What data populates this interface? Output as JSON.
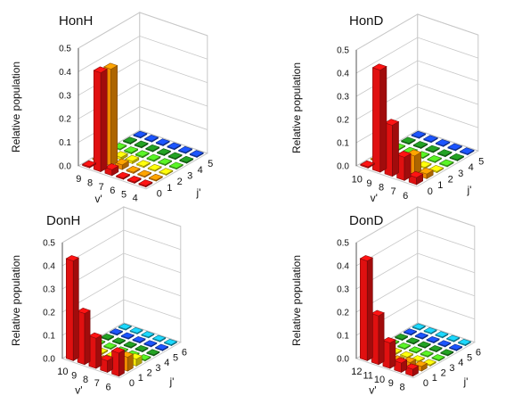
{
  "chart_data": [
    {
      "type": "bar",
      "title": "HonH",
      "ylabel": "Relative population",
      "ylim": [
        0,
        0.5
      ],
      "yticks": [
        "0.0",
        "0.1",
        "0.2",
        "0.3",
        "0.4",
        "0.5"
      ],
      "xlabel": "v'",
      "zlabel": "j'",
      "v_ticks": [
        "9",
        "8",
        "7",
        "6",
        "5",
        "4"
      ],
      "j_ticks": [
        "0",
        "1",
        "2",
        "3",
        "4",
        "5"
      ],
      "bars": [
        {
          "v": "9",
          "j": "0",
          "value": 0.005
        },
        {
          "v": "8",
          "j": "0",
          "value": 0.42
        },
        {
          "v": "7",
          "j": "0",
          "value": 0.025
        },
        {
          "v": "6",
          "j": "0",
          "value": 0.005
        },
        {
          "v": "5",
          "j": "0",
          "value": 0.005
        },
        {
          "v": "4",
          "j": "0",
          "value": 0.005
        },
        {
          "v": "9",
          "j": "1",
          "value": 0.004
        },
        {
          "v": "8",
          "j": "1",
          "value": 0.41
        },
        {
          "v": "7",
          "j": "1",
          "value": 0.02
        },
        {
          "v": "6",
          "j": "1",
          "value": 0.005
        },
        {
          "v": "5",
          "j": "1",
          "value": 0.004
        },
        {
          "v": "4",
          "j": "1",
          "value": 0.004
        },
        {
          "v": "9",
          "j": "2",
          "value": 0.004
        },
        {
          "v": "8",
          "j": "2",
          "value": 0.01
        },
        {
          "v": "7",
          "j": "2",
          "value": 0.01
        },
        {
          "v": "6",
          "j": "2",
          "value": 0.005
        },
        {
          "v": "5",
          "j": "2",
          "value": 0.004
        },
        {
          "v": "4",
          "j": "2",
          "value": 0.004
        },
        {
          "v": "9",
          "j": "3",
          "value": 0.004
        },
        {
          "v": "8",
          "j": "3",
          "value": 0.005
        },
        {
          "v": "7",
          "j": "3",
          "value": 0.005
        },
        {
          "v": "6",
          "j": "3",
          "value": 0.005
        },
        {
          "v": "5",
          "j": "3",
          "value": 0.004
        },
        {
          "v": "4",
          "j": "3",
          "value": 0.004
        },
        {
          "v": "9",
          "j": "4",
          "value": 0.004
        },
        {
          "v": "8",
          "j": "4",
          "value": 0.004
        },
        {
          "v": "7",
          "j": "4",
          "value": 0.004
        },
        {
          "v": "6",
          "j": "4",
          "value": 0.004
        },
        {
          "v": "5",
          "j": "4",
          "value": 0.004
        },
        {
          "v": "4",
          "j": "4",
          "value": 0.004
        },
        {
          "v": "9",
          "j": "5",
          "value": 0.004
        },
        {
          "v": "8",
          "j": "5",
          "value": 0.004
        },
        {
          "v": "7",
          "j": "5",
          "value": 0.004
        },
        {
          "v": "6",
          "j": "5",
          "value": 0.004
        },
        {
          "v": "5",
          "j": "5",
          "value": 0.004
        },
        {
          "v": "4",
          "j": "5",
          "value": 0.004
        }
      ]
    },
    {
      "type": "bar",
      "title": "HonD",
      "ylabel": "Relative population",
      "ylim": [
        0,
        0.5
      ],
      "yticks": [
        "0.0",
        "0.1",
        "0.2",
        "0.3",
        "0.4",
        "0.5"
      ],
      "xlabel": "v'",
      "zlabel": "j'",
      "v_ticks": [
        "10",
        "9",
        "8",
        "7",
        "6"
      ],
      "j_ticks": [
        "0",
        "1",
        "2",
        "3",
        "4",
        "5"
      ],
      "bars": [
        {
          "v": "10",
          "j": "0",
          "value": 0.005
        },
        {
          "v": "9",
          "j": "0",
          "value": 0.44
        },
        {
          "v": "8",
          "j": "0",
          "value": 0.22
        },
        {
          "v": "7",
          "j": "0",
          "value": 0.1
        },
        {
          "v": "6",
          "j": "0",
          "value": 0.03
        },
        {
          "v": "10",
          "j": "1",
          "value": 0.004
        },
        {
          "v": "9",
          "j": "1",
          "value": 0.01
        },
        {
          "v": "8",
          "j": "1",
          "value": 0.01
        },
        {
          "v": "7",
          "j": "1",
          "value": 0.08
        },
        {
          "v": "6",
          "j": "1",
          "value": 0.02
        },
        {
          "v": "10",
          "j": "2",
          "value": 0.004
        },
        {
          "v": "9",
          "j": "2",
          "value": 0.005
        },
        {
          "v": "8",
          "j": "2",
          "value": 0.005
        },
        {
          "v": "7",
          "j": "2",
          "value": 0.005
        },
        {
          "v": "6",
          "j": "2",
          "value": 0.005
        },
        {
          "v": "10",
          "j": "3",
          "value": 0.004
        },
        {
          "v": "9",
          "j": "3",
          "value": 0.004
        },
        {
          "v": "8",
          "j": "3",
          "value": 0.004
        },
        {
          "v": "7",
          "j": "3",
          "value": 0.004
        },
        {
          "v": "6",
          "j": "3",
          "value": 0.004
        },
        {
          "v": "10",
          "j": "4",
          "value": 0.004
        },
        {
          "v": "9",
          "j": "4",
          "value": 0.004
        },
        {
          "v": "8",
          "j": "4",
          "value": 0.004
        },
        {
          "v": "7",
          "j": "4",
          "value": 0.004
        },
        {
          "v": "6",
          "j": "4",
          "value": 0.004
        },
        {
          "v": "10",
          "j": "5",
          "value": 0.004
        },
        {
          "v": "9",
          "j": "5",
          "value": 0.004
        },
        {
          "v": "8",
          "j": "5",
          "value": 0.004
        },
        {
          "v": "7",
          "j": "5",
          "value": 0.004
        },
        {
          "v": "6",
          "j": "5",
          "value": 0.004
        }
      ]
    },
    {
      "type": "bar",
      "title": "DonH",
      "ylabel": "Relative population",
      "ylim": [
        0,
        0.5
      ],
      "yticks": [
        "0.0",
        "0.1",
        "0.2",
        "0.3",
        "0.4",
        "0.5"
      ],
      "xlabel": "v'",
      "zlabel": "j'",
      "v_ticks": [
        "10",
        "9",
        "8",
        "7",
        "6"
      ],
      "j_ticks": [
        "0",
        "1",
        "2",
        "3",
        "4",
        "5",
        "6"
      ],
      "bars": [
        {
          "v": "10",
          "j": "0",
          "value": 0.43
        },
        {
          "v": "9",
          "j": "0",
          "value": 0.22
        },
        {
          "v": "8",
          "j": "0",
          "value": 0.13
        },
        {
          "v": "7",
          "j": "0",
          "value": 0.05
        },
        {
          "v": "6",
          "j": "0",
          "value": 0.1
        },
        {
          "v": "10",
          "j": "1",
          "value": 0.02
        },
        {
          "v": "9",
          "j": "1",
          "value": 0.02
        },
        {
          "v": "8",
          "j": "1",
          "value": 0.01
        },
        {
          "v": "7",
          "j": "1",
          "value": 0.02
        },
        {
          "v": "6",
          "j": "1",
          "value": 0.06
        },
        {
          "v": "10",
          "j": "2",
          "value": 0.005
        },
        {
          "v": "9",
          "j": "2",
          "value": 0.005
        },
        {
          "v": "8",
          "j": "2",
          "value": 0.005
        },
        {
          "v": "7",
          "j": "2",
          "value": 0.005
        },
        {
          "v": "6",
          "j": "2",
          "value": 0.03
        },
        {
          "v": "10",
          "j": "3",
          "value": 0.004
        },
        {
          "v": "9",
          "j": "3",
          "value": 0.004
        },
        {
          "v": "8",
          "j": "3",
          "value": 0.004
        },
        {
          "v": "7",
          "j": "3",
          "value": 0.004
        },
        {
          "v": "6",
          "j": "3",
          "value": 0.004
        },
        {
          "v": "10",
          "j": "4",
          "value": 0.004
        },
        {
          "v": "9",
          "j": "4",
          "value": 0.004
        },
        {
          "v": "8",
          "j": "4",
          "value": 0.004
        },
        {
          "v": "7",
          "j": "4",
          "value": 0.004
        },
        {
          "v": "6",
          "j": "4",
          "value": 0.004
        },
        {
          "v": "10",
          "j": "5",
          "value": 0.004
        },
        {
          "v": "9",
          "j": "5",
          "value": 0.004
        },
        {
          "v": "8",
          "j": "5",
          "value": 0.004
        },
        {
          "v": "7",
          "j": "5",
          "value": 0.004
        },
        {
          "v": "6",
          "j": "5",
          "value": 0.004
        },
        {
          "v": "10",
          "j": "6",
          "value": 0.004
        },
        {
          "v": "9",
          "j": "6",
          "value": 0.004
        },
        {
          "v": "8",
          "j": "6",
          "value": 0.004
        },
        {
          "v": "7",
          "j": "6",
          "value": 0.004
        },
        {
          "v": "6",
          "j": "6",
          "value": 0.004
        }
      ]
    },
    {
      "type": "bar",
      "title": "DonD",
      "ylabel": "Relative population",
      "ylim": [
        0,
        0.5
      ],
      "yticks": [
        "0.0",
        "0.1",
        "0.2",
        "0.3",
        "0.4",
        "0.5"
      ],
      "xlabel": "v'",
      "zlabel": "j'",
      "v_ticks": [
        "12",
        "11",
        "10",
        "9",
        "8"
      ],
      "j_ticks": [
        "0",
        "1",
        "2",
        "3",
        "4",
        "5",
        "6"
      ],
      "bars": [
        {
          "v": "12",
          "j": "0",
          "value": 0.43
        },
        {
          "v": "11",
          "j": "0",
          "value": 0.21
        },
        {
          "v": "10",
          "j": "0",
          "value": 0.11
        },
        {
          "v": "9",
          "j": "0",
          "value": 0.04
        },
        {
          "v": "8",
          "j": "0",
          "value": 0.03
        },
        {
          "v": "12",
          "j": "1",
          "value": 0.03
        },
        {
          "v": "11",
          "j": "1",
          "value": 0.02
        },
        {
          "v": "10",
          "j": "1",
          "value": 0.01
        },
        {
          "v": "9",
          "j": "1",
          "value": 0.02
        },
        {
          "v": "8",
          "j": "1",
          "value": 0.02
        },
        {
          "v": "12",
          "j": "2",
          "value": 0.005
        },
        {
          "v": "11",
          "j": "2",
          "value": 0.005
        },
        {
          "v": "10",
          "j": "2",
          "value": 0.005
        },
        {
          "v": "9",
          "j": "2",
          "value": 0.005
        },
        {
          "v": "8",
          "j": "2",
          "value": 0.005
        },
        {
          "v": "12",
          "j": "3",
          "value": 0.004
        },
        {
          "v": "11",
          "j": "3",
          "value": 0.004
        },
        {
          "v": "10",
          "j": "3",
          "value": 0.004
        },
        {
          "v": "9",
          "j": "3",
          "value": 0.004
        },
        {
          "v": "8",
          "j": "3",
          "value": 0.004
        },
        {
          "v": "12",
          "j": "4",
          "value": 0.004
        },
        {
          "v": "11",
          "j": "4",
          "value": 0.004
        },
        {
          "v": "10",
          "j": "4",
          "value": 0.004
        },
        {
          "v": "9",
          "j": "4",
          "value": 0.004
        },
        {
          "v": "8",
          "j": "4",
          "value": 0.004
        },
        {
          "v": "12",
          "j": "5",
          "value": 0.004
        },
        {
          "v": "11",
          "j": "5",
          "value": 0.004
        },
        {
          "v": "10",
          "j": "5",
          "value": 0.004
        },
        {
          "v": "9",
          "j": "5",
          "value": 0.004
        },
        {
          "v": "8",
          "j": "5",
          "value": 0.004
        },
        {
          "v": "12",
          "j": "6",
          "value": 0.004
        },
        {
          "v": "11",
          "j": "6",
          "value": 0.004
        },
        {
          "v": "10",
          "j": "6",
          "value": 0.004
        },
        {
          "v": "9",
          "j": "6",
          "value": 0.004
        },
        {
          "v": "8",
          "j": "6",
          "value": 0.004
        }
      ]
    }
  ],
  "colors": {
    "j_palette": [
      "#e01010",
      "#f08c00",
      "#f5e50a",
      "#4cd020",
      "#1e8a1e",
      "#1848d8",
      "#18b8d8"
    ],
    "grid": "#c8c8c8",
    "axis": "#555555"
  }
}
